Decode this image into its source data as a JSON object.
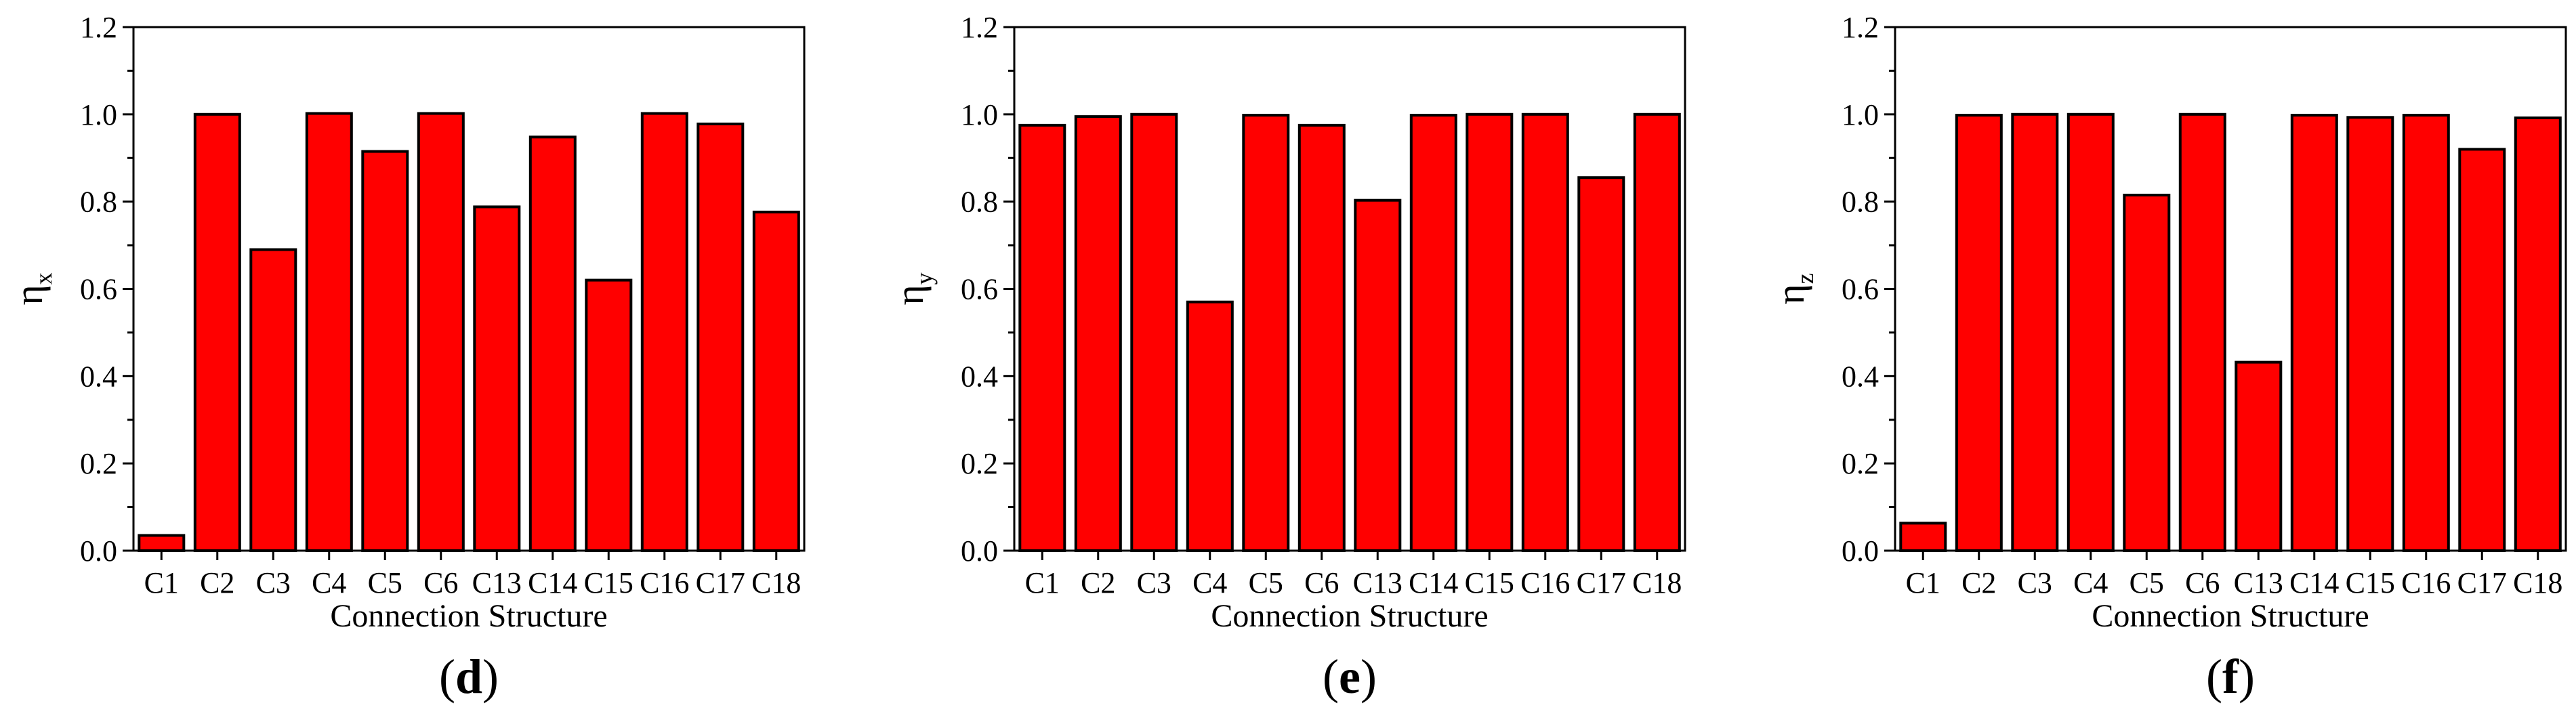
{
  "chart_data": [
    {
      "type": "bar",
      "panel_label": "(d)",
      "panel_letter": "d",
      "ylabel_main": "η",
      "ylabel_sub": "x",
      "xlabel": "Connection Structure",
      "ylim": [
        0,
        1.2
      ],
      "yticks": [
        "0.0",
        "0.2",
        "0.4",
        "0.6",
        "0.8",
        "1.0",
        "1.2"
      ],
      "categories": [
        "C1",
        "C2",
        "C3",
        "C4",
        "C5",
        "C6",
        "C13",
        "C14",
        "C15",
        "C16",
        "C17",
        "C18"
      ],
      "values": [
        0.035,
        1.0,
        0.69,
        1.002,
        0.915,
        1.002,
        0.788,
        0.948,
        0.62,
        1.002,
        0.978,
        0.776
      ],
      "bar_color": "#ff0000",
      "grid": false,
      "legend": false
    },
    {
      "type": "bar",
      "panel_label": "(e)",
      "panel_letter": "e",
      "ylabel_main": "η",
      "ylabel_sub": "y",
      "xlabel": "Connection Structure",
      "ylim": [
        0,
        1.2
      ],
      "yticks": [
        "0.0",
        "0.2",
        "0.4",
        "0.6",
        "0.8",
        "1.0",
        "1.2"
      ],
      "categories": [
        "C1",
        "C2",
        "C3",
        "C4",
        "C5",
        "C6",
        "C13",
        "C14",
        "C15",
        "C16",
        "C17",
        "C18"
      ],
      "values": [
        0.975,
        0.995,
        1.0,
        0.57,
        0.998,
        0.975,
        0.803,
        0.998,
        1.0,
        1.0,
        0.855,
        1.0
      ],
      "bar_color": "#ff0000",
      "grid": false,
      "legend": false
    },
    {
      "type": "bar",
      "panel_label": "(f)",
      "panel_letter": "f",
      "ylabel_main": "η",
      "ylabel_sub": "z",
      "xlabel": "Connection Structure",
      "ylim": [
        0,
        1.2
      ],
      "yticks": [
        "0.0",
        "0.2",
        "0.4",
        "0.6",
        "0.8",
        "1.0",
        "1.2"
      ],
      "categories": [
        "C1",
        "C2",
        "C3",
        "C4",
        "C5",
        "C6",
        "C13",
        "C14",
        "C15",
        "C16",
        "C17",
        "C18"
      ],
      "values": [
        0.063,
        0.998,
        1.0,
        1.0,
        0.815,
        1.0,
        0.432,
        0.998,
        0.993,
        0.998,
        0.92,
        0.992
      ],
      "bar_color": "#ff0000",
      "grid": false,
      "legend": false
    }
  ]
}
